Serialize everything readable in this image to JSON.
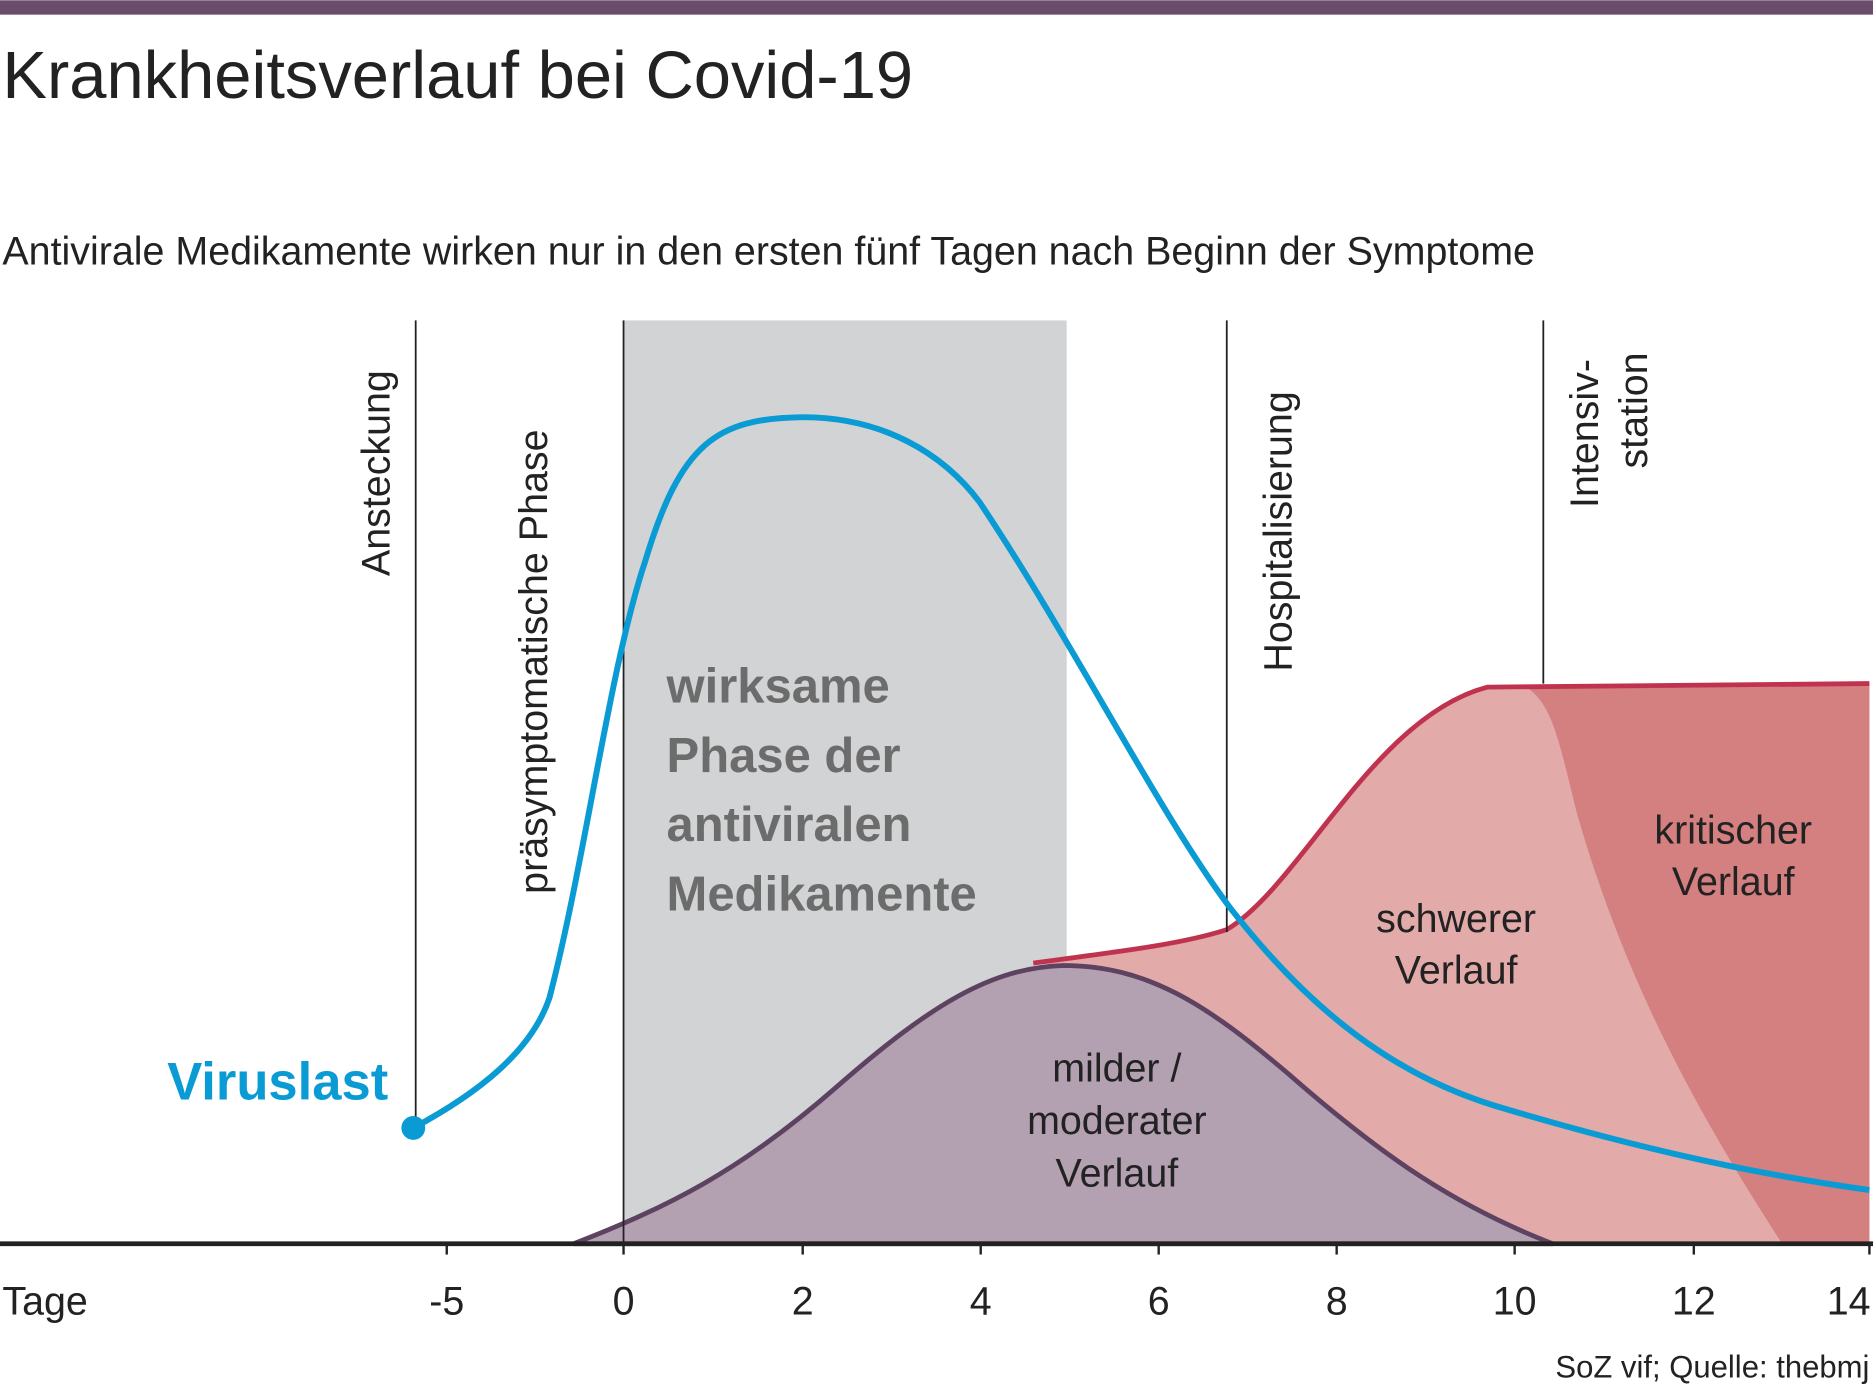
{
  "header": {
    "title": "Krankheitsverlauf bei Covid-19",
    "subtitle": "Antivirale Medikamente wirken nur in den ersten fünf Tagen nach Beginn der Symptome"
  },
  "phases": {
    "infection": "Ansteckung",
    "presymptomatic": "präsymptomatische Phase",
    "hospital": "Hospitalisierung",
    "icu": [
      "Intensiv-",
      "station"
    ]
  },
  "viral_load_label": "Viruslast",
  "window_label": [
    "wirksame",
    "Phase der",
    "antiviralen",
    "Medikamente"
  ],
  "courses": {
    "mild": [
      "milder /",
      "moderater",
      "Verlauf"
    ],
    "severe": [
      "schwerer",
      "Verlauf"
    ],
    "critical": [
      "kritischer",
      "Verlauf"
    ]
  },
  "axis": {
    "label": "Tage",
    "ticks": [
      "-5",
      "0",
      "2",
      "4",
      "6",
      "8",
      "10",
      "12",
      "14"
    ]
  },
  "source": "SoZ vif; Quelle: thebmj"
}
